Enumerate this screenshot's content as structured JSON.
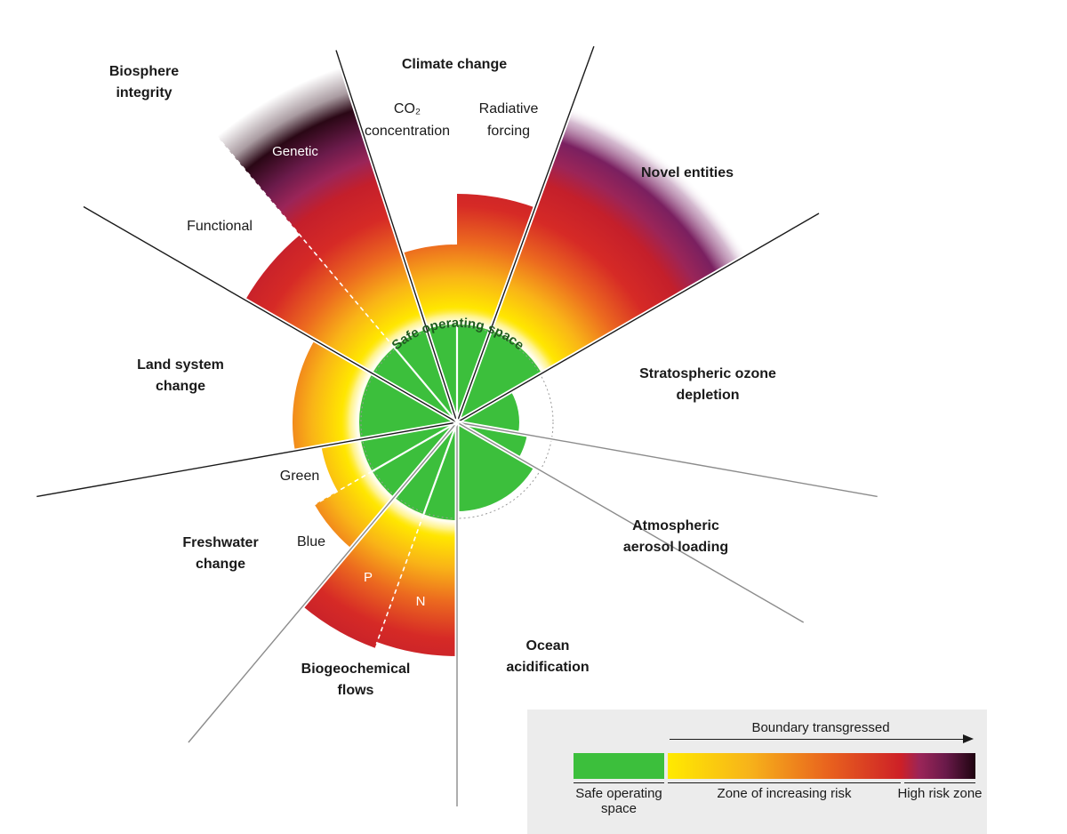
{
  "center_label": "Safe operating space",
  "categories": {
    "climate": "Climate change",
    "novel": "Novel entities",
    "ozone": [
      "Stratospheric ozone",
      "depletion"
    ],
    "aerosol": [
      "Atmospheric",
      "aerosol loading"
    ],
    "ocean": [
      "Ocean",
      "acidification"
    ],
    "biogeo": [
      "Biogeochemical",
      "flows"
    ],
    "freshwater": [
      "Freshwater",
      "change"
    ],
    "land": [
      "Land system",
      "change"
    ],
    "biosphere": [
      "Biosphere",
      "integrity"
    ]
  },
  "sublabels": {
    "co2": [
      "CO₂",
      "concentration"
    ],
    "radiative": [
      "Radiative",
      "forcing"
    ],
    "genetic": "Genetic",
    "functional": "Functional",
    "green": "Green",
    "blue": "Blue",
    "p": "P",
    "n": "N"
  },
  "legend": {
    "arrow_label": "Boundary transgressed",
    "safe": "Safe operating space",
    "risk": "Zone of increasing risk",
    "high": "High risk zone"
  },
  "colors": {
    "safe_green": "#3cbf3c",
    "risk_yellow": "#ffea00",
    "risk_red": "#cd2027",
    "high_purple": "#6a1a4a",
    "high_dark": "#1f0410"
  }
}
